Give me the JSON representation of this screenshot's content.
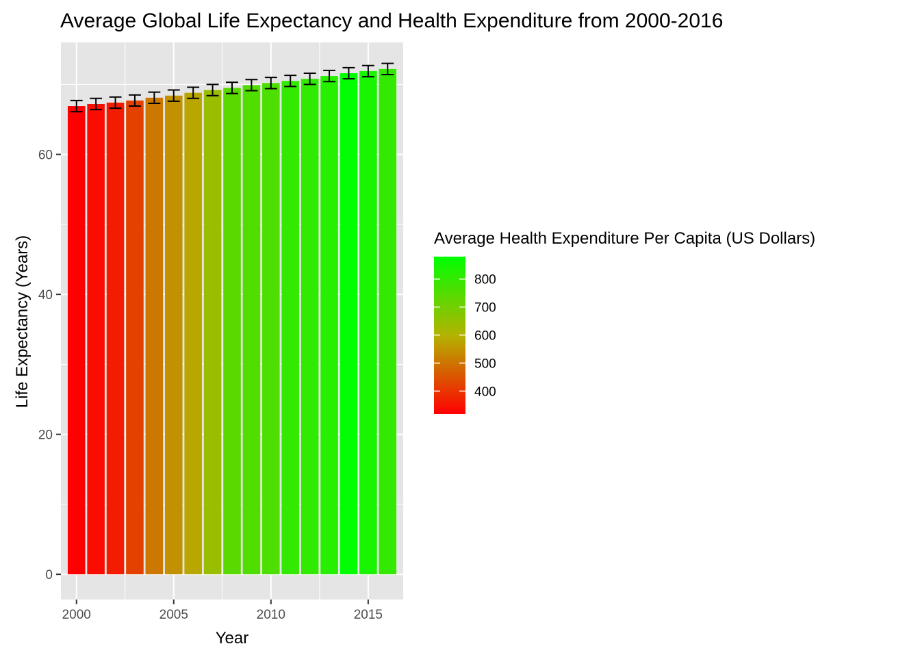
{
  "chart_data": {
    "type": "bar",
    "title": "Average Global Life Expectancy and Health Expenditure from 2000-2016",
    "xlabel": "Year",
    "ylabel": "Life Expectancy (Years)",
    "x": [
      2000,
      2001,
      2002,
      2003,
      2004,
      2005,
      2006,
      2007,
      2008,
      2009,
      2010,
      2011,
      2012,
      2013,
      2014,
      2015,
      2016
    ],
    "values": [
      66.9,
      67.2,
      67.4,
      67.7,
      68.1,
      68.4,
      68.8,
      69.2,
      69.5,
      69.9,
      70.2,
      70.5,
      70.8,
      71.2,
      71.6,
      71.9,
      72.2
    ],
    "error": [
      0.8,
      0.8,
      0.8,
      0.8,
      0.8,
      0.8,
      0.8,
      0.8,
      0.8,
      0.8,
      0.8,
      0.8,
      0.8,
      0.8,
      0.8,
      0.8,
      0.8
    ],
    "fill_values": [
      318,
      338,
      362,
      418,
      505,
      545,
      578,
      640,
      740,
      755,
      760,
      800,
      805,
      820,
      880,
      840,
      800
    ],
    "xlim": [
      1999.2,
      2016.8
    ],
    "ylim": [
      -3.6,
      76.0
    ],
    "x_ticks": [
      2000,
      2005,
      2010,
      2015
    ],
    "y_ticks": [
      0,
      20,
      40,
      60
    ],
    "grid": true,
    "legend": {
      "title": "Average Health Expenditure Per Capita (US Dollars)",
      "ticks": [
        400,
        500,
        600,
        700,
        800
      ],
      "range": [
        318,
        880
      ],
      "low_color": "#ff0000",
      "high_color": "#00ff00",
      "position": "right"
    },
    "colors": {
      "panel_background": "#e5e5e5",
      "grid": "#ffffff",
      "error_bar": "#000000"
    }
  }
}
